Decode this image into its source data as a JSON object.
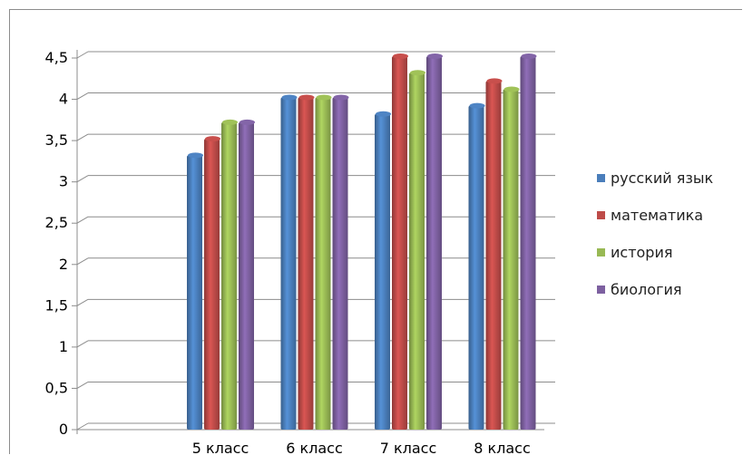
{
  "chart_data": {
    "type": "bar",
    "categories": [
      "5 класс",
      "6 класс",
      "7 класс",
      "8 класс"
    ],
    "series": [
      {
        "name": "русский язык",
        "color": "#4a7ebb",
        "values": [
          3.3,
          4.0,
          3.8,
          3.9
        ]
      },
      {
        "name": "математика",
        "color": "#be4b48",
        "values": [
          3.5,
          4.0,
          4.5,
          4.2
        ]
      },
      {
        "name": "история",
        "color": "#98b954",
        "values": [
          3.7,
          4.0,
          4.3,
          4.1
        ]
      },
      {
        "name": "биология",
        "color": "#7d60a0",
        "values": [
          3.7,
          4.0,
          4.5,
          4.5
        ]
      }
    ],
    "ylim": [
      0,
      4.5
    ],
    "yticks": [
      "0",
      "0,5",
      "1",
      "1,5",
      "2",
      "2,5",
      "3",
      "3,5",
      "4",
      "4,5"
    ],
    "grid": true,
    "legend": "right",
    "title": "",
    "xlabel": "",
    "ylabel": ""
  }
}
